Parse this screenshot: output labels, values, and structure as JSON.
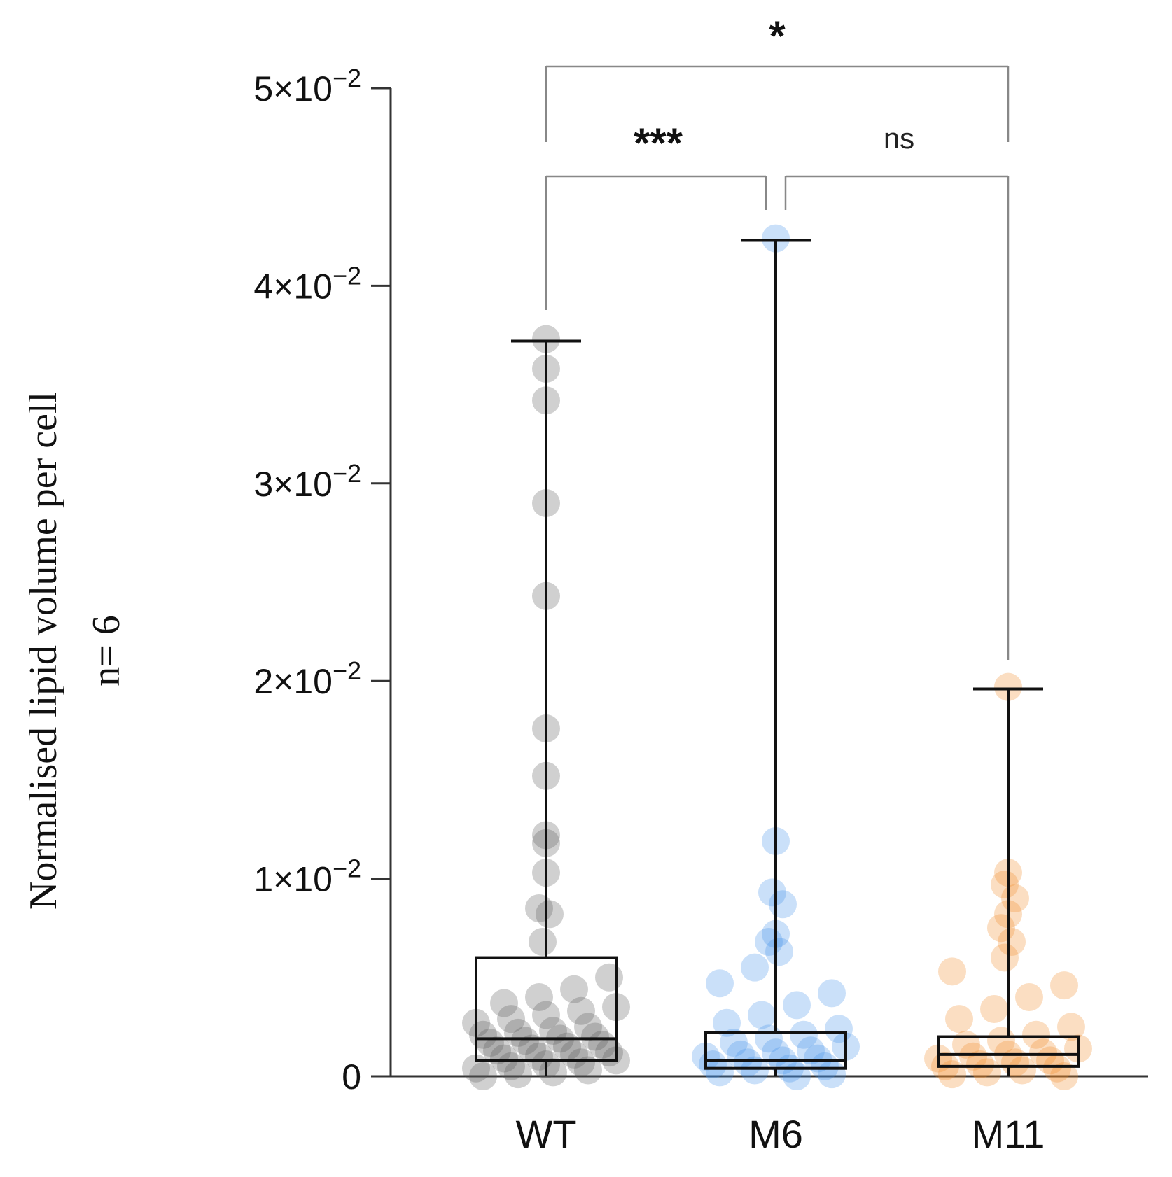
{
  "chart_data": {
    "type": "box",
    "ylabel_lines": [
      "Normalised lipid volume per cell",
      "n= 6"
    ],
    "ylim": [
      0,
      0.05
    ],
    "yticks": [
      {
        "value": 0,
        "base": "0",
        "exp": ""
      },
      {
        "value": 0.01,
        "base": "1×10",
        "exp": "−2"
      },
      {
        "value": 0.02,
        "base": "2×10",
        "exp": "−2"
      },
      {
        "value": 0.03,
        "base": "3×10",
        "exp": "−2"
      },
      {
        "value": 0.04,
        "base": "4×10",
        "exp": "−2"
      },
      {
        "value": 0.05,
        "base": "5×10",
        "exp": "−2"
      }
    ],
    "categories": [
      "WT",
      "M6",
      "M11"
    ],
    "colors": {
      "WT": "#555555",
      "M6": "#3f8fe8",
      "M11": "#f08a24",
      "box": "#111111",
      "bracket": "#888888"
    },
    "boxes": [
      {
        "name": "WT",
        "min": 0.0,
        "q1": 0.0008,
        "median": 0.0019,
        "q3": 0.006,
        "max": 0.0372
      },
      {
        "name": "M6",
        "min": 0.0,
        "q1": 0.0004,
        "median": 0.0008,
        "q3": 0.0022,
        "max": 0.0423
      },
      {
        "name": "M11",
        "min": 0.0,
        "q1": 0.0005,
        "median": 0.0011,
        "q3": 0.002,
        "max": 0.0196
      }
    ],
    "points": {
      "WT": [
        0.0373,
        0.0358,
        0.0342,
        0.029,
        0.0243,
        0.0176,
        0.0152,
        0.0122,
        0.0118,
        0.0103,
        0.0085,
        0.0082,
        0.0068,
        0.005,
        0.0044,
        0.004,
        0.0037,
        0.0035,
        0.0033,
        0.0031,
        0.0029,
        0.0027,
        0.0025,
        0.0023,
        0.0022,
        0.0021,
        0.002,
        0.0019,
        0.0018,
        0.0017,
        0.0016,
        0.0015,
        0.0014,
        0.0013,
        0.0012,
        0.0011,
        0.001,
        0.0009,
        0.0008,
        0.0007,
        0.0006,
        0.0005,
        0.0004,
        0.0003,
        0.0002,
        0.0001,
        0.0
      ],
      "M6": [
        0.0424,
        0.0119,
        0.0093,
        0.0087,
        0.0072,
        0.0068,
        0.0063,
        0.0055,
        0.0047,
        0.0042,
        0.0036,
        0.0031,
        0.0027,
        0.0024,
        0.0021,
        0.0019,
        0.0017,
        0.0015,
        0.0013,
        0.0012,
        0.0011,
        0.001,
        0.0009,
        0.0008,
        0.0007,
        0.0006,
        0.0005,
        0.0004,
        0.0003,
        0.0002,
        0.0001,
        0.0
      ],
      "M11": [
        0.0197,
        0.0103,
        0.0097,
        0.009,
        0.0082,
        0.0075,
        0.0068,
        0.006,
        0.0053,
        0.0046,
        0.004,
        0.0034,
        0.0029,
        0.0025,
        0.0021,
        0.0018,
        0.0016,
        0.0014,
        0.0012,
        0.0011,
        0.001,
        0.0009,
        0.0008,
        0.0007,
        0.0006,
        0.0005,
        0.0004,
        0.0003,
        0.0002,
        0.0001,
        0.0
      ]
    },
    "significance": [
      {
        "from": "WT",
        "to": "M11",
        "label": "*"
      },
      {
        "from": "WT",
        "to": "M6",
        "label": "***"
      },
      {
        "from": "M6",
        "to": "M11",
        "label": "ns"
      }
    ]
  }
}
